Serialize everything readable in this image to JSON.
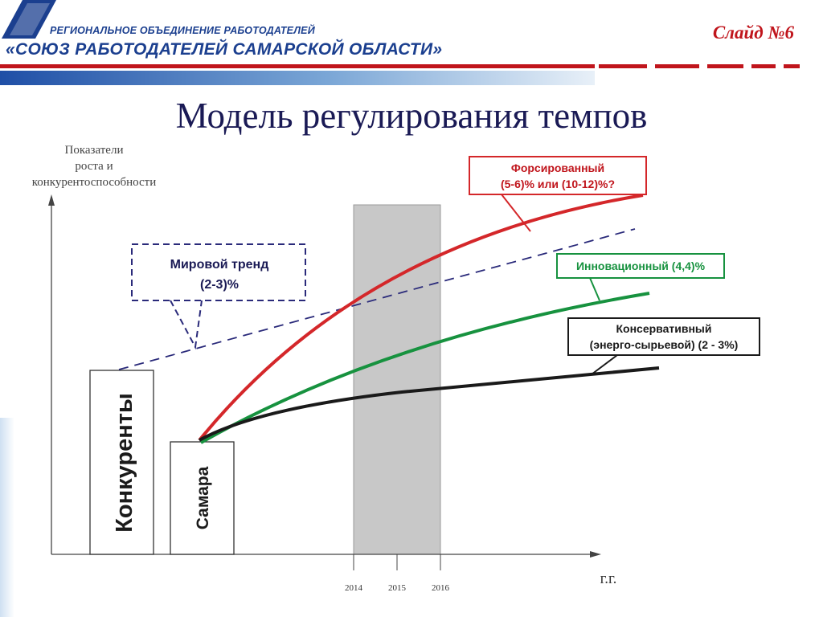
{
  "header": {
    "org_line1": "РЕГИОНАЛЬНОЕ ОБЪЕДИНЕНИЕ РАБОТОДАТЕЛЕЙ",
    "org_line2": "«СОЮЗ РАБОТОДАТЕЛЕЙ САМАРСКОЙ ОБЛАСТИ»",
    "slide_number": "Слайд №6"
  },
  "title": "Модель регулирования темпов",
  "axes": {
    "y_label_lines": [
      "Показатели",
      "роста  и",
      "конкурентоспособности"
    ],
    "x_label": "г.г.",
    "x_ticks": [
      "2014",
      "2015",
      "2016"
    ]
  },
  "bars": {
    "competitors": "Конкуренты",
    "samara": "Самара"
  },
  "callouts": {
    "world_trend": [
      "Мировой тренд",
      "(2-3)%"
    ],
    "forced": [
      "Форсированный",
      "(5-6)% или (10-12)%?"
    ],
    "innovation": [
      "Инновационный (4,4)%"
    ],
    "conservative": [
      "Консервативный",
      "(энерго-сырьевой) (2 - 3%)"
    ]
  },
  "colors": {
    "brand_blue": "#1b3f8f",
    "accent_red": "#c0151c",
    "forced_line": "#d4272a",
    "innovation_line": "#17923f",
    "conservative_line": "#1a1a1a",
    "trend_line": "#2a2a7a",
    "highlight_band": "#c8c8c8"
  }
}
